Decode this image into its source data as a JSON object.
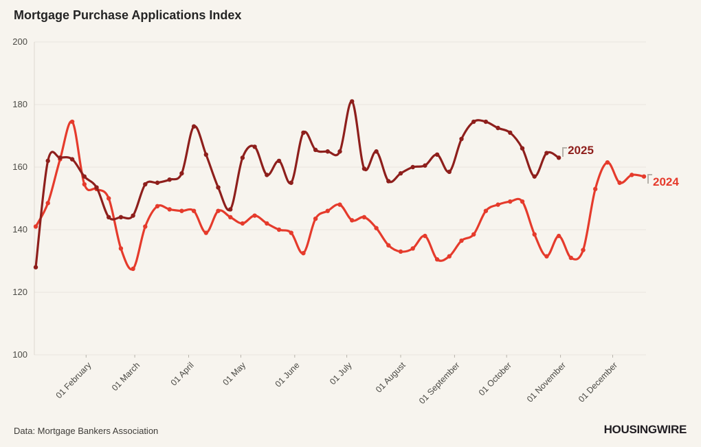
{
  "page": {
    "title": "Mortgage Purchase Applications Index",
    "source": "Data: Mortgage Bankers Association",
    "logo": "HOUSINGWIRE",
    "colors": {
      "background": "#f7f4ee",
      "grid": "#e9e5de",
      "axis": "#dcd8d0",
      "tick": "#b7b3ab",
      "text": "#4b4a45",
      "title_text": "#242424"
    }
  },
  "chart_data": {
    "type": "line",
    "title": "Mortgage Purchase Applications Index",
    "xlabel": "",
    "ylabel": "",
    "ylim": [
      100,
      200
    ],
    "yticks": [
      100,
      120,
      140,
      160,
      180,
      200
    ],
    "grid": "horizontal",
    "frequency": "weekly",
    "legend_position": "end-of-line labels",
    "xticks": [
      {
        "label": "01 February",
        "week": 4.14
      },
      {
        "label": "01 March",
        "week": 8.14
      },
      {
        "label": "01 April",
        "week": 12.57
      },
      {
        "label": "01 May",
        "week": 16.86
      },
      {
        "label": "01 June",
        "week": 21.29
      },
      {
        "label": "01 July",
        "week": 25.57
      },
      {
        "label": "01 August",
        "week": 30.0
      },
      {
        "label": "01 September",
        "week": 34.43
      },
      {
        "label": "01 October",
        "week": 38.71
      },
      {
        "label": "01 November",
        "week": 43.14
      },
      {
        "label": "01 December",
        "week": 47.43
      }
    ],
    "series": [
      {
        "name": "2025",
        "color": "#8e1f1c",
        "values": [
          128,
          162,
          163,
          162.5,
          157,
          153.5,
          144,
          144,
          144.5,
          154.5,
          155,
          156,
          158,
          173,
          164,
          153.5,
          146.5,
          163,
          166.5,
          157.5,
          162,
          155,
          171,
          165.5,
          165,
          165,
          181,
          159.5,
          165,
          155.5,
          158,
          160,
          160.5,
          164,
          158.5,
          169,
          174.5,
          174.5,
          172.5,
          171,
          166,
          157,
          164.5,
          163
        ]
      },
      {
        "name": "2024",
        "color": "#e53b2c",
        "values": [
          141,
          148.5,
          162.5,
          174.5,
          154.5,
          153,
          150,
          134,
          127.5,
          141,
          147.5,
          146.5,
          146,
          146,
          139,
          146,
          144,
          142,
          144.5,
          142,
          140,
          139,
          132.5,
          143.5,
          146,
          148,
          143,
          144,
          140.5,
          135,
          133,
          134,
          138,
          130.5,
          131.5,
          136.5,
          138.5,
          146,
          148,
          149,
          149,
          138.5,
          131.5,
          138,
          131,
          133.5,
          153,
          161.5,
          155,
          157.5,
          157
        ]
      }
    ]
  }
}
